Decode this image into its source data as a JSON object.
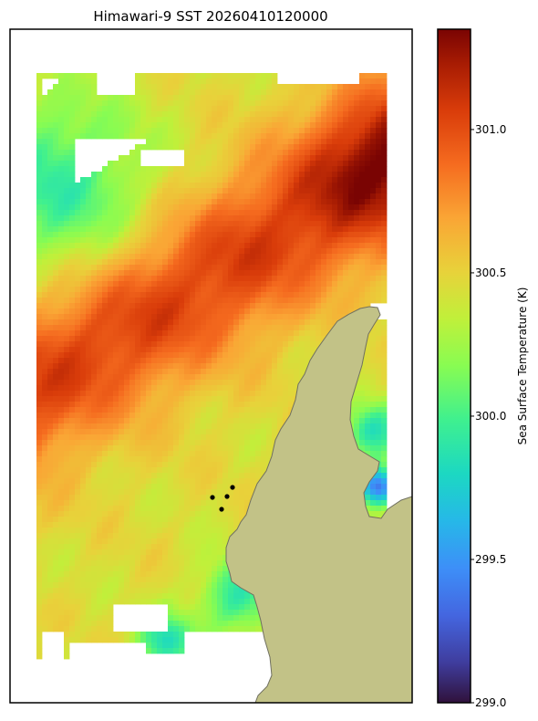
{
  "chart_data": {
    "type": "heatmap",
    "title": "Himawari-9 SST 20260410120000",
    "colorbar": {
      "label": "Sea Surface Temperature (K)",
      "min": 299.0,
      "max": 301.35,
      "ticks": [
        {
          "value": 299.0,
          "label": "299.0"
        },
        {
          "value": 299.5,
          "label": "299.5"
        },
        {
          "value": 300.0,
          "label": "300.0"
        },
        {
          "value": 300.5,
          "label": "300.5"
        },
        {
          "value": 301.0,
          "label": "301.0"
        }
      ],
      "colormap": "turbo"
    },
    "land_color": "#c2c287",
    "coastline_color": "#707060",
    "marker_color": "#000000",
    "marker_count": 5,
    "grid": false,
    "axes_ticks": false,
    "field_description": [
      {
        "region": "north-west edge",
        "value_range": [
          299.8,
          300.1
        ]
      },
      {
        "region": "central diagonal band",
        "value_range": [
          300.7,
          301.2
        ]
      },
      {
        "region": "north-east corner",
        "value_range": [
          301.2,
          301.35
        ]
      },
      {
        "region": "south-west",
        "value_range": [
          300.5,
          300.9
        ]
      },
      {
        "region": "east near coast",
        "value_range": [
          299.1,
          300.0
        ]
      }
    ]
  }
}
